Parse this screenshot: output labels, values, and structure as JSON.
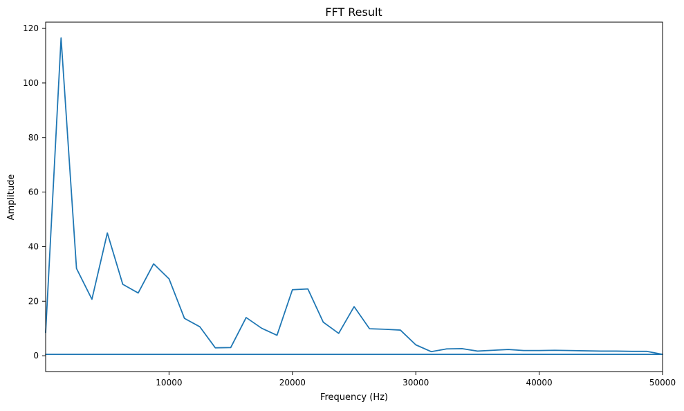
{
  "chart_data": {
    "type": "line",
    "title": "FFT Result",
    "xlabel": "Frequency (Hz)",
    "ylabel": "Amplitude",
    "xlim": [
      0,
      50000
    ],
    "ylim": [
      -5.8,
      122.3
    ],
    "x_ticks": [
      10000,
      20000,
      30000,
      40000,
      50000
    ],
    "y_ticks": [
      0,
      20,
      40,
      60,
      80,
      100,
      120
    ],
    "grid": false,
    "line_color": "#1f77b4",
    "series": [
      {
        "x": [
          0,
          1250,
          2500,
          3750,
          5000,
          6250,
          7500,
          8750,
          10000,
          11250,
          12500,
          13750,
          15000,
          16250,
          17500,
          18750,
          20000,
          21250,
          22500,
          23750,
          25000,
          26250,
          27500,
          28750,
          30000,
          31250,
          32500,
          33750,
          35000,
          36250,
          37500,
          38750,
          40000,
          41250,
          42500,
          43750,
          45000,
          46250,
          47500,
          48750,
          50000,
          0
        ],
        "y": [
          8.5,
          116.5,
          32,
          20.7,
          45,
          26.2,
          23,
          33.7,
          28.2,
          13.7,
          10.6,
          2.9,
          3,
          14,
          10.1,
          7.5,
          24.2,
          24.5,
          12.3,
          8.2,
          18,
          9.9,
          9.7,
          9.4,
          4,
          1.5,
          2.5,
          2.6,
          1.7,
          2,
          2.3,
          1.9,
          1.9,
          2,
          1.9,
          1.8,
          1.7,
          1.7,
          1.6,
          1.6,
          0.5,
          0.5
        ]
      }
    ]
  }
}
